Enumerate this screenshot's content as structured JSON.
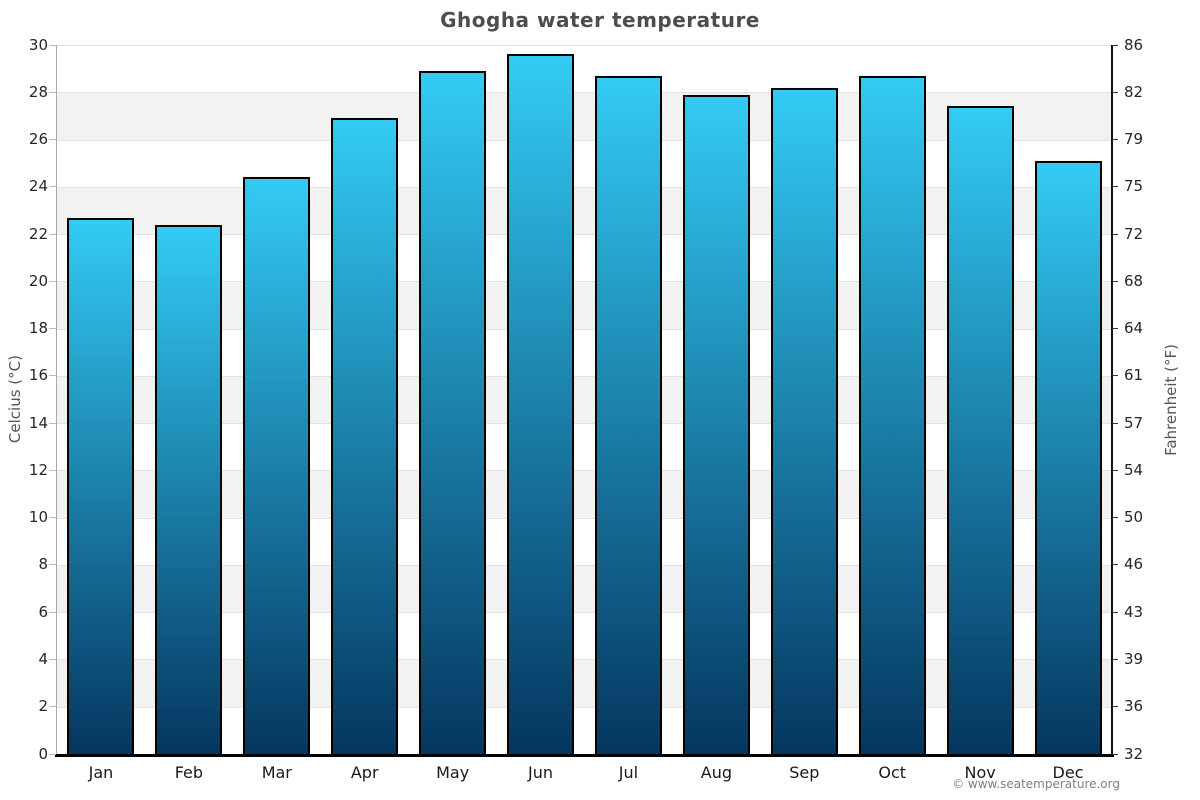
{
  "title": "Ghogha water temperature",
  "footer": "© www.seatemperature.org",
  "chart_data": {
    "type": "bar",
    "title": "Ghogha water temperature",
    "categories": [
      "Jan",
      "Feb",
      "Mar",
      "Apr",
      "May",
      "Jun",
      "Jul",
      "Aug",
      "Sep",
      "Oct",
      "Nov",
      "Dec"
    ],
    "values": [
      22.7,
      22.4,
      24.4,
      26.9,
      28.9,
      29.6,
      28.7,
      27.9,
      28.2,
      28.7,
      27.4,
      25.1
    ],
    "ylabel_left": "Celcius (°C)",
    "ylabel_right": "Fahrenheit (°F)",
    "ylim": [
      0,
      30
    ],
    "ytick_step": 2,
    "yticks_celsius": [
      0,
      2,
      4,
      6,
      8,
      10,
      12,
      14,
      16,
      18,
      20,
      22,
      24,
      26,
      28,
      30
    ],
    "yticks_fahrenheit": [
      32,
      36,
      39,
      43,
      46,
      50,
      54,
      57,
      61,
      64,
      68,
      72,
      75,
      79,
      82,
      86
    ],
    "grid": "horizontal-bands-alternating",
    "legend": "none",
    "colors": {
      "bar_gradient_top": "#33cbf5",
      "bar_gradient_bottom": "#04365f",
      "bar_border": "#000000",
      "band_white": "#ffffff",
      "band_gray": "#f2f2f2",
      "gridline": "#e2e2e2",
      "axis_left_spine": "#a8a8a8",
      "axis_right_spine": "#111111",
      "axis_bottom_spine": "#000000",
      "tick_mark_left": "#bbbbbb",
      "tick_mark_right": "#333333",
      "title_text": "#4d4d4d",
      "tick_text": "#262626",
      "axis_label_text": "#555555",
      "footer_text": "#808080"
    }
  }
}
